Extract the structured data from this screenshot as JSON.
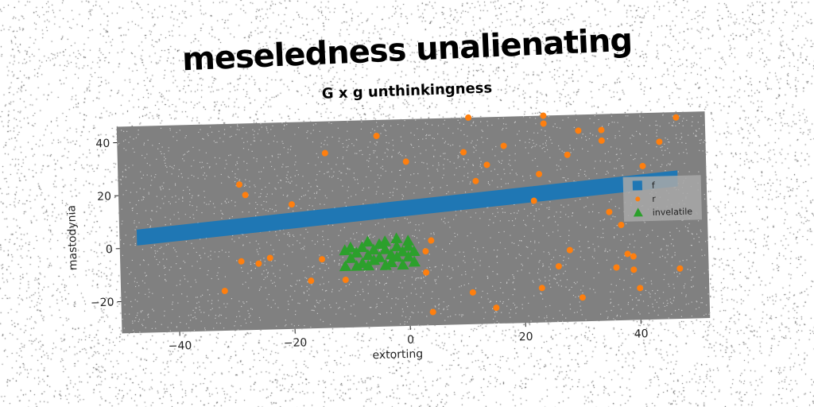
{
  "title": "meseledness unalienating",
  "subtitle": "G x g unthinkingness",
  "chart_data": {
    "type": "scatter",
    "xlabel": "extorting",
    "ylabel": "mastodynia",
    "xlim": [
      -50,
      52
    ],
    "ylim": [
      -32,
      46
    ],
    "xticks": [
      -40,
      -20,
      0,
      20,
      40
    ],
    "yticks": [
      -20,
      0,
      20,
      40
    ],
    "xtick_labels": [
      "−40",
      "−20",
      "0",
      "20",
      "40"
    ],
    "ytick_labels": [
      "−20",
      "0",
      "20",
      "40"
    ],
    "grid": false,
    "background": "#808080",
    "legend_position": "right",
    "series": [
      {
        "name": "f",
        "kind": "band",
        "color": "#1f77b4",
        "x": [
          -47,
          47
        ],
        "y_low": [
          1,
          18
        ],
        "y_high": [
          7,
          24
        ]
      },
      {
        "name": "r",
        "kind": "points",
        "color": "#ff7f0e",
        "points": [
          [
            -29,
            23
          ],
          [
            -28,
            19
          ],
          [
            -20,
            15
          ],
          [
            -14,
            34
          ],
          [
            -5,
            40
          ],
          [
            0,
            30
          ],
          [
            -32,
            -17
          ],
          [
            -29,
            -6
          ],
          [
            -26,
            -7
          ],
          [
            -24,
            -5
          ],
          [
            -17,
            -14
          ],
          [
            -15,
            -6
          ],
          [
            -11,
            -14
          ],
          [
            4,
            0
          ],
          [
            3,
            -4
          ],
          [
            3,
            -12
          ],
          [
            4,
            -27
          ],
          [
            10,
            33
          ],
          [
            11,
            46
          ],
          [
            12,
            22
          ],
          [
            14,
            28
          ],
          [
            17,
            35
          ],
          [
            11,
            -20
          ],
          [
            15,
            -26
          ],
          [
            23,
            24
          ],
          [
            23,
            -19
          ],
          [
            24,
            46
          ],
          [
            24,
            43
          ],
          [
            22,
            14
          ],
          [
            26,
            -11
          ],
          [
            28,
            31
          ],
          [
            28,
            -5
          ],
          [
            30,
            40
          ],
          [
            30,
            -23
          ],
          [
            34,
            40
          ],
          [
            34,
            36
          ],
          [
            35,
            9
          ],
          [
            37,
            4
          ],
          [
            36,
            -12
          ],
          [
            38,
            -7
          ],
          [
            39,
            -13
          ],
          [
            39,
            -8
          ],
          [
            40,
            -20
          ],
          [
            41,
            26
          ],
          [
            44,
            35
          ],
          [
            47,
            44
          ],
          [
            47,
            -13
          ]
        ]
      },
      {
        "name": "invelatile",
        "kind": "triangles",
        "color": "#2ca02c",
        "points": [
          [
            -11,
            -3
          ],
          [
            -10,
            -6
          ],
          [
            -11,
            -9
          ],
          [
            -9,
            -4
          ],
          [
            -8,
            -8
          ],
          [
            -8,
            -2
          ],
          [
            -7,
            -5
          ],
          [
            -7,
            -9
          ],
          [
            -6,
            -3
          ],
          [
            -6,
            -7
          ],
          [
            -5,
            -1
          ],
          [
            -5,
            -6
          ],
          [
            -4,
            -9
          ],
          [
            -4,
            -3
          ],
          [
            -3,
            -5
          ],
          [
            -3,
            -8
          ],
          [
            -2,
            -2
          ],
          [
            -2,
            -6
          ],
          [
            -1,
            -4
          ],
          [
            -1,
            -9
          ],
          [
            0,
            -6
          ],
          [
            0,
            -2
          ],
          [
            1,
            -4
          ],
          [
            1,
            -8
          ],
          [
            -9,
            -9
          ],
          [
            -10,
            -2
          ],
          [
            0,
            0
          ],
          [
            -7,
            0
          ],
          [
            -4,
            0
          ],
          [
            -2,
            1
          ]
        ]
      }
    ]
  },
  "legend": {
    "items": [
      {
        "label": "f",
        "color": "#1f77b4",
        "marker": "square"
      },
      {
        "label": "r",
        "color": "#ff7f0e",
        "marker": "circle"
      },
      {
        "label": "invelatile",
        "color": "#2ca02c",
        "marker": "triangle"
      }
    ]
  }
}
